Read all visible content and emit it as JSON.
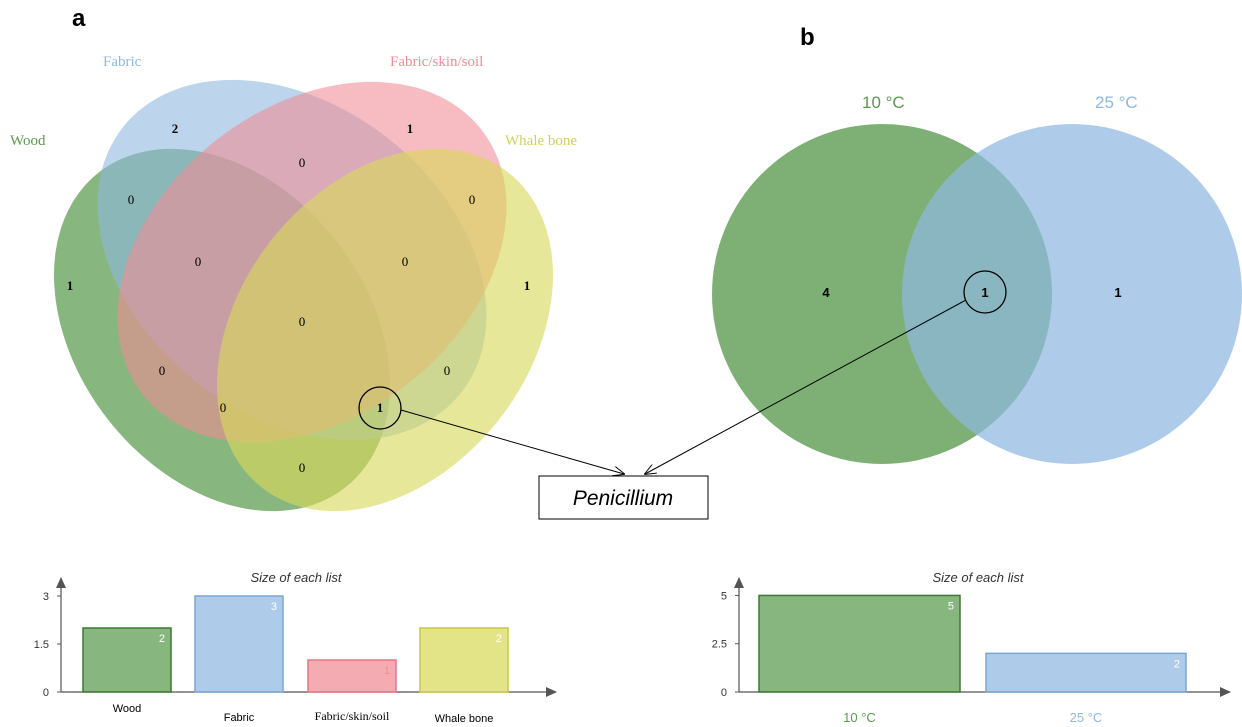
{
  "panel_a": {
    "letter": "a",
    "sets": [
      {
        "name": "Wood",
        "color": "#5a9a4e"
      },
      {
        "name": "Fabric",
        "color": "#8fb8e0"
      },
      {
        "name": "Fabric/skin/soil",
        "color": "#f08c94"
      },
      {
        "name": "Whale bone",
        "color": "#d8d85a"
      }
    ],
    "regions": {
      "fabric_only": "2",
      "fss_only": "1",
      "wood_only": "1",
      "whale_only": "1",
      "wood_fabric": "0",
      "fabric_fss": "0",
      "fss_whale": "0",
      "wood_fabric_fss": "0",
      "fabric_fss_whale": "0",
      "all_four": "0",
      "wood_fss": "0",
      "fabric_whale": "0",
      "wood_fss_whale": "0",
      "wood_fabric_whale": "1",
      "wood_whale": "0"
    }
  },
  "panel_b": {
    "letter": "b",
    "sets": [
      {
        "name": "10 °C",
        "color": "#5a9a4e"
      },
      {
        "name": "25 °C",
        "color": "#8fb8e0"
      }
    ],
    "regions": {
      "left_only": "4",
      "both": "1",
      "right_only": "1"
    }
  },
  "callout": {
    "text": "Penicillium"
  },
  "chart_data": [
    {
      "type": "bar",
      "title": "Size of each list",
      "categories": [
        "Wood",
        "Fabric",
        "Fabric/skin/soil",
        "Whale bone"
      ],
      "values": [
        2,
        3,
        1,
        2
      ],
      "colors": [
        "#5a9a4e",
        "#8fb8e0",
        "#f08c94",
        "#d8d85a"
      ],
      "ylim": [
        0,
        3.5
      ],
      "yticks": [
        "0",
        "1.5",
        "3"
      ],
      "grid": false
    },
    {
      "type": "bar",
      "title": "Size of each list",
      "categories": [
        "10 °C",
        "25 °C"
      ],
      "values": [
        5,
        2
      ],
      "colors": [
        "#5a9a4e",
        "#8fb8e0"
      ],
      "ylim": [
        0,
        5.8
      ],
      "yticks": [
        "0",
        "2.5",
        "5"
      ],
      "grid": false
    }
  ]
}
